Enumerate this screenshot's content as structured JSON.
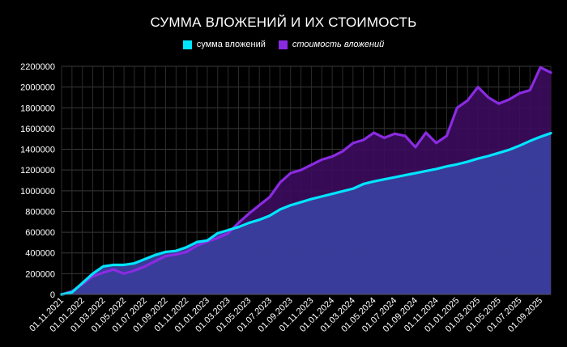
{
  "chart_data": {
    "type": "area",
    "title": "СУММА ВЛОЖЕНИЙ И ИХ СТОИМОСТЬ",
    "xlabel": "",
    "ylabel": "",
    "ylim": [
      0,
      2200000
    ],
    "y_ticks": [
      "0",
      "200000",
      "400000",
      "600000",
      "800000",
      "1000000",
      "1200000",
      "1400000",
      "1600000",
      "1800000",
      "2000000",
      "2200000"
    ],
    "x_tick_labels": [
      "01.11.2021",
      "01.01.2022",
      "01.03.2022",
      "01.05.2022",
      "01.07.2022",
      "01.09.2022",
      "01.11.2022",
      "01.01.2023",
      "01.03.2023",
      "01.05.2023",
      "01.07.2023",
      "01.09.2023",
      "01.11.2023",
      "01.01.2024",
      "01.03.2024",
      "01.05.2024",
      "01.07.2024",
      "01.09.2024",
      "01.11.2024",
      "01.01.2025",
      "01.03.2025",
      "01.05.2025",
      "01.07.2025",
      "01.09.2025"
    ],
    "grid": true,
    "legend": "top-center",
    "x": [
      "01.11.2021",
      "01.12.2021",
      "01.01.2022",
      "01.02.2022",
      "01.03.2022",
      "01.04.2022",
      "01.05.2022",
      "01.06.2022",
      "01.07.2022",
      "01.08.2022",
      "01.09.2022",
      "01.10.2022",
      "01.11.2022",
      "01.12.2022",
      "01.01.2023",
      "01.02.2023",
      "01.03.2023",
      "01.04.2023",
      "01.05.2023",
      "01.06.2023",
      "01.07.2023",
      "01.08.2023",
      "01.09.2023",
      "01.10.2023",
      "01.11.2023",
      "01.12.2023",
      "01.01.2024",
      "01.02.2024",
      "01.03.2024",
      "01.04.2024",
      "01.05.2024",
      "01.06.2024",
      "01.07.2024",
      "01.08.2024",
      "01.09.2024",
      "01.10.2024",
      "01.11.2024",
      "01.12.2024",
      "01.01.2025",
      "01.02.2025",
      "01.03.2025",
      "01.04.2025",
      "01.05.2025",
      "01.06.2025",
      "01.07.2025",
      "01.08.2025",
      "01.09.2025",
      "01.10.2025"
    ],
    "series": [
      {
        "name": "сумма вложений",
        "color": "#00e5ff",
        "fill": "#3a3f9e",
        "values": [
          0,
          20000,
          110000,
          200000,
          270000,
          285000,
          285000,
          300000,
          340000,
          380000,
          410000,
          420000,
          455000,
          505000,
          520000,
          590000,
          620000,
          650000,
          690000,
          720000,
          760000,
          820000,
          860000,
          890000,
          920000,
          945000,
          970000,
          995000,
          1020000,
          1065000,
          1090000,
          1110000,
          1130000,
          1150000,
          1170000,
          1190000,
          1210000,
          1235000,
          1255000,
          1280000,
          1310000,
          1335000,
          1365000,
          1395000,
          1435000,
          1480000,
          1520000,
          1555000
        ]
      },
      {
        "name": "стоимость вложений",
        "color": "#8a2be2",
        "fill": "#3c0b5e",
        "values": [
          0,
          30000,
          100000,
          175000,
          210000,
          240000,
          200000,
          230000,
          270000,
          320000,
          370000,
          385000,
          410000,
          470000,
          510000,
          545000,
          590000,
          690000,
          780000,
          860000,
          940000,
          1080000,
          1170000,
          1200000,
          1250000,
          1300000,
          1330000,
          1380000,
          1460000,
          1490000,
          1560000,
          1510000,
          1550000,
          1530000,
          1420000,
          1560000,
          1460000,
          1530000,
          1800000,
          1870000,
          2000000,
          1900000,
          1840000,
          1880000,
          1940000,
          1970000,
          2190000,
          2140000
        ]
      }
    ]
  }
}
